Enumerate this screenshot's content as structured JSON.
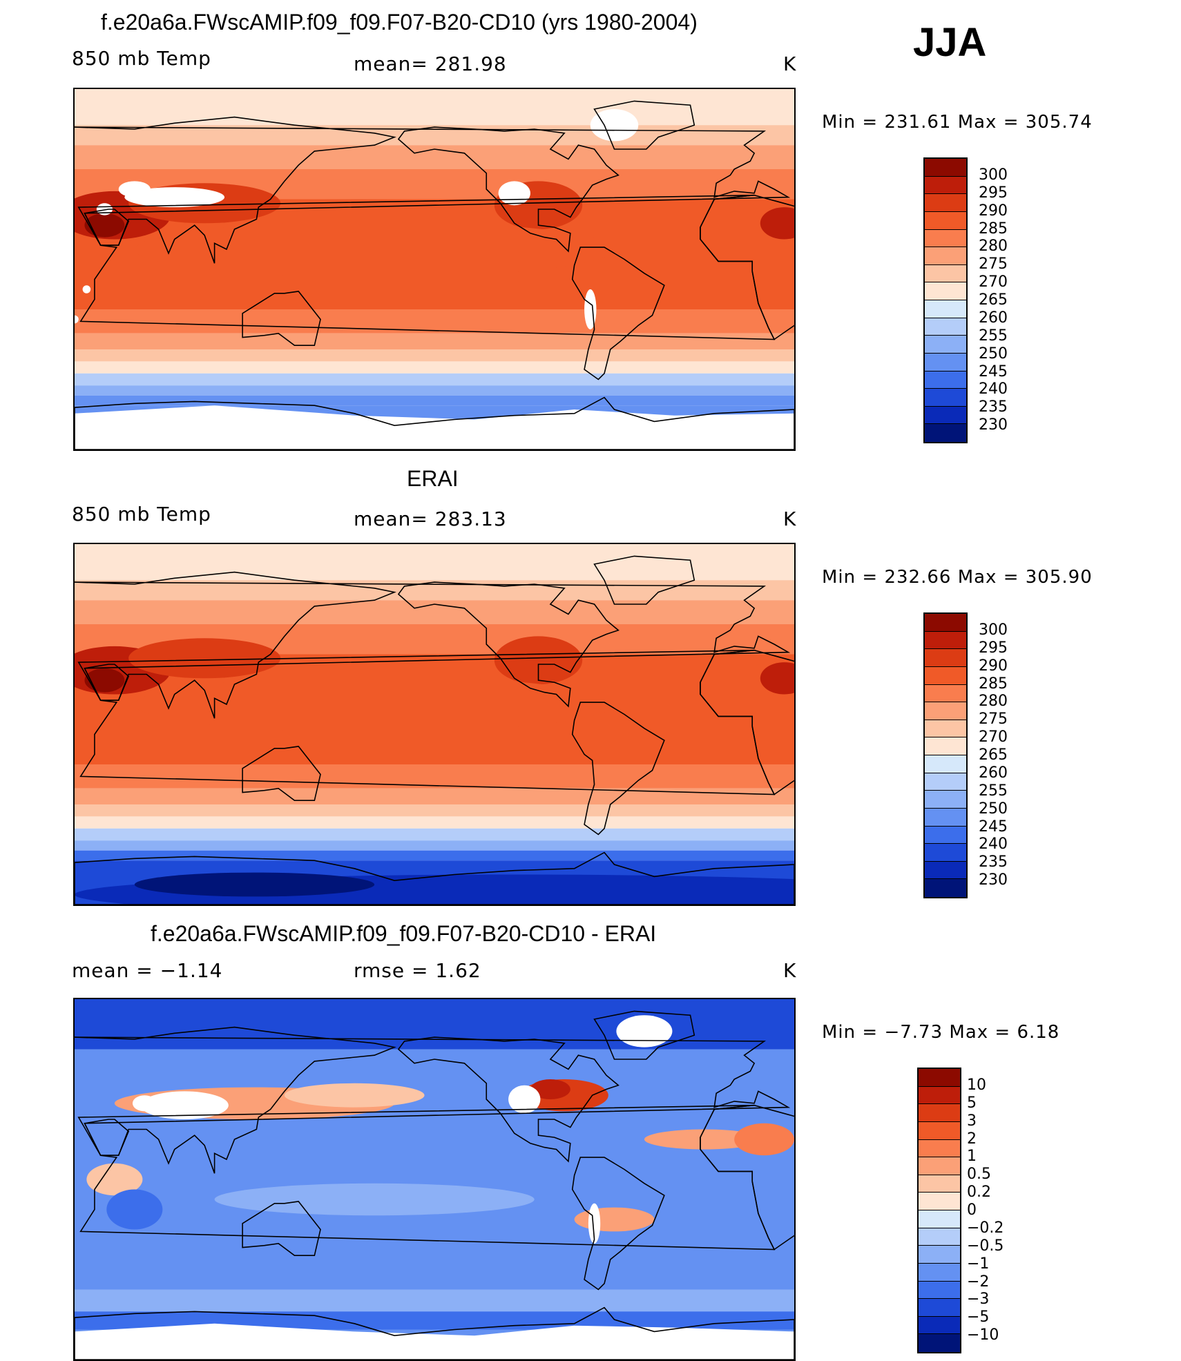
{
  "season": "JJA",
  "panels": [
    {
      "title": "f.e20a6a.FWscAMIP.f09_f09.F07-B20-CD10 (yrs 1980-2004)",
      "left_label": "850 mb Temp",
      "center_label": "mean= 281.98",
      "units": "K",
      "minmax": "Min = 231.61 Max = 305.74"
    },
    {
      "title": "ERAI",
      "left_label": "850 mb Temp",
      "center_label": "mean= 283.13",
      "units": "K",
      "minmax": "Min = 232.66 Max = 305.90"
    },
    {
      "title": "f.e20a6a.FWscAMIP.f09_f09.F07-B20-CD10 - ERAI",
      "left_label": "mean =  −1.14",
      "center_label": "rmse =    1.62",
      "units": "K",
      "minmax": "Min =  −7.73 Max =     6.18"
    }
  ],
  "chart_data": [
    {
      "type": "heatmap",
      "title": "f.e20a6a.FWscAMIP.f09_f09.F07-B20-CD10 (yrs 1980-2004)",
      "variable": "850 mb Temp",
      "units": "K",
      "mean": 281.98,
      "min": 231.61,
      "max": 305.74,
      "xlim": [
        30,
        390
      ],
      "ylim": [
        -90,
        90
      ],
      "contour_levels": [
        230,
        235,
        240,
        245,
        250,
        255,
        260,
        265,
        270,
        275,
        280,
        285,
        290,
        295,
        300
      ],
      "colorbar_labels": [
        "300",
        "295",
        "290",
        "285",
        "280",
        "275",
        "270",
        "265",
        "260",
        "255",
        "250",
        "245",
        "240",
        "235",
        "230"
      ],
      "colors": [
        "#8c0a00",
        "#be1e0a",
        "#dc3c14",
        "#f05a28",
        "#f97d4e",
        "#fba077",
        "#fcc5a5",
        "#fee5d3",
        "#d6e8fa",
        "#b4cdf9",
        "#8cb0f6",
        "#6491f2",
        "#3c6eeb",
        "#1e4ad7",
        "#0a2ab8",
        "#001478"
      ]
    },
    {
      "type": "heatmap",
      "title": "ERAI",
      "variable": "850 mb Temp",
      "units": "K",
      "mean": 283.13,
      "min": 232.66,
      "max": 305.9,
      "xlim": [
        30,
        390
      ],
      "ylim": [
        -90,
        90
      ],
      "contour_levels": [
        230,
        235,
        240,
        245,
        250,
        255,
        260,
        265,
        270,
        275,
        280,
        285,
        290,
        295,
        300
      ],
      "colorbar_labels": [
        "300",
        "295",
        "290",
        "285",
        "280",
        "275",
        "270",
        "265",
        "260",
        "255",
        "250",
        "245",
        "240",
        "235",
        "230"
      ],
      "colors": [
        "#8c0a00",
        "#be1e0a",
        "#dc3c14",
        "#f05a28",
        "#f97d4e",
        "#fba077",
        "#fcc5a5",
        "#fee5d3",
        "#d6e8fa",
        "#b4cdf9",
        "#8cb0f6",
        "#6491f2",
        "#3c6eeb",
        "#1e4ad7",
        "#0a2ab8",
        "#001478"
      ]
    },
    {
      "type": "heatmap",
      "title": "f.e20a6a.FWscAMIP.f09_f09.F07-B20-CD10 - ERAI",
      "variable": "850 mb Temp difference",
      "units": "K",
      "mean": -1.14,
      "rmse": 1.62,
      "min": -7.73,
      "max": 6.18,
      "xlim": [
        30,
        390
      ],
      "ylim": [
        -90,
        90
      ],
      "contour_levels": [
        -10,
        -5,
        -3,
        -2,
        -1,
        -0.5,
        -0.2,
        0,
        0.2,
        0.5,
        1,
        2,
        3,
        5,
        10
      ],
      "colorbar_labels": [
        "10",
        "5",
        "3",
        "2",
        "1",
        "0.5",
        "0.2",
        "0",
        "−0.2",
        "−0.5",
        "−1",
        "−2",
        "−3",
        "−5",
        "−10"
      ],
      "colors": [
        "#8c0a00",
        "#be1e0a",
        "#dc3c14",
        "#f05a28",
        "#f97d4e",
        "#fba077",
        "#fcc5a5",
        "#fee5d3",
        "#d6e8fa",
        "#b4cdf9",
        "#8cb0f6",
        "#6491f2",
        "#3c6eeb",
        "#1e4ad7",
        "#0a2ab8",
        "#001478"
      ]
    }
  ]
}
